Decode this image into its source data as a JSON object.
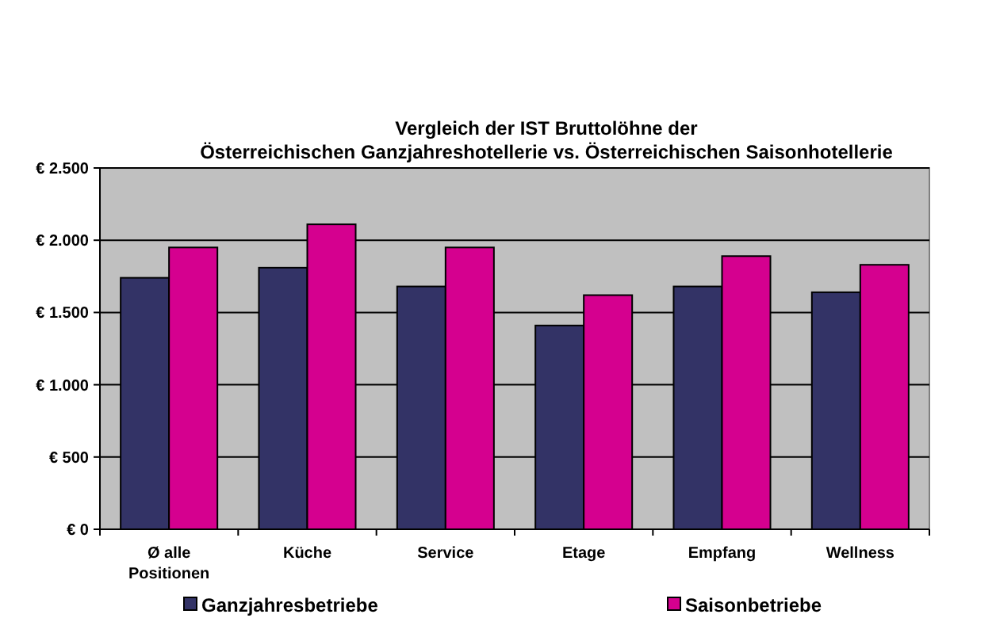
{
  "chart_data": {
    "type": "bar",
    "title": "Vergleich der IST Bruttolöhne der\nÖsterreichischen Ganzjahreshotellerie vs. Österreichischen Saisonhotellerie",
    "categories": [
      "Ø alle\nPositionen",
      "Küche",
      "Service",
      "Etage",
      "Empfang",
      "Wellness"
    ],
    "series": [
      {
        "name": "Ganzjahresbetriebe",
        "color": "#333366",
        "values": [
          1740,
          1810,
          1680,
          1410,
          1680,
          1640
        ]
      },
      {
        "name": "Saisonbetriebe",
        "color": "#d5008f",
        "values": [
          1950,
          2110,
          1950,
          1620,
          1890,
          1830
        ]
      }
    ],
    "ylim": [
      0,
      2500
    ],
    "yticks": [
      {
        "value": 0,
        "label": "€ 0"
      },
      {
        "value": 500,
        "label": "€ 500"
      },
      {
        "value": 1000,
        "label": "€ 1.000"
      },
      {
        "value": 1500,
        "label": "€ 1.500"
      },
      {
        "value": 2000,
        "label": "€ 2.000"
      },
      {
        "value": 2500,
        "label": "€ 2.500"
      }
    ],
    "grid": "y",
    "legend": "bottom"
  }
}
